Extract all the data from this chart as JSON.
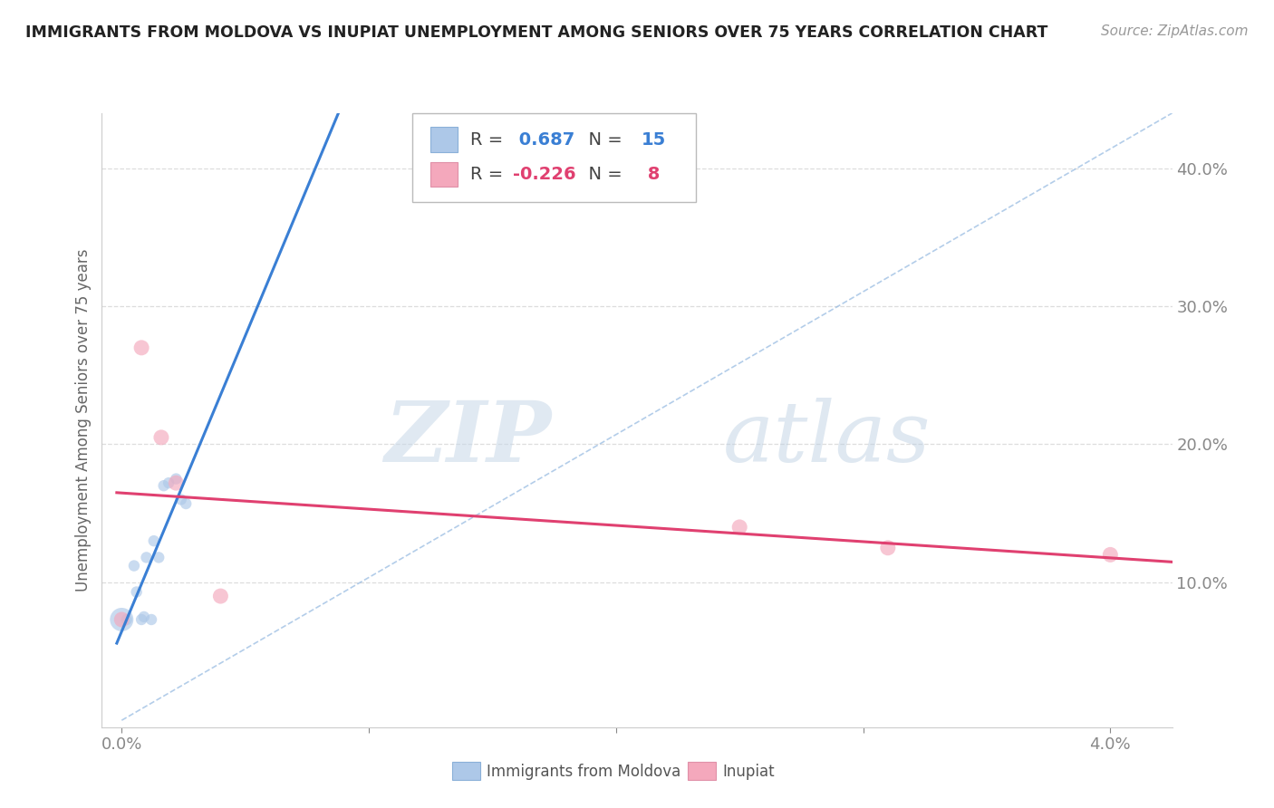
{
  "title": "IMMIGRANTS FROM MOLDOVA VS INUPIAT UNEMPLOYMENT AMONG SENIORS OVER 75 YEARS CORRELATION CHART",
  "source": "Source: ZipAtlas.com",
  "ylabel": "Unemployment Among Seniors over 75 years",
  "legend_bottom_labels": [
    "Immigrants from Moldova",
    "Inupiat"
  ],
  "R_blue": 0.687,
  "N_blue": 15,
  "R_pink": -0.226,
  "N_pink": 8,
  "blue_color": "#adc8e8",
  "pink_color": "#f4a8bc",
  "blue_line_color": "#3a7fd4",
  "pink_line_color": "#e04070",
  "ref_line_color": "#93b8e0",
  "scatter_blue": [
    [
      0.0,
      0.073
    ],
    [
      0.0002,
      0.073
    ],
    [
      0.0005,
      0.112
    ],
    [
      0.0006,
      0.093
    ],
    [
      0.0008,
      0.073
    ],
    [
      0.0009,
      0.075
    ],
    [
      0.001,
      0.118
    ],
    [
      0.0012,
      0.073
    ],
    [
      0.0013,
      0.13
    ],
    [
      0.0015,
      0.118
    ],
    [
      0.0017,
      0.17
    ],
    [
      0.0019,
      0.172
    ],
    [
      0.0022,
      0.175
    ],
    [
      0.0024,
      0.16
    ],
    [
      0.0026,
      0.157
    ]
  ],
  "scatter_pink": [
    [
      0.0,
      0.073
    ],
    [
      0.0008,
      0.27
    ],
    [
      0.0016,
      0.205
    ],
    [
      0.0022,
      0.172
    ],
    [
      0.004,
      0.09
    ],
    [
      0.025,
      0.14
    ],
    [
      0.031,
      0.125
    ],
    [
      0.04,
      0.12
    ]
  ],
  "blue_sizes": [
    120,
    80,
    80,
    80,
    80,
    80,
    80,
    80,
    80,
    80,
    80,
    80,
    80,
    80,
    80
  ],
  "blue_size_large": 350,
  "pink_sizes": [
    150,
    150,
    150,
    150,
    150,
    150,
    150,
    150
  ],
  "xlim": [
    -0.0008,
    0.0425
  ],
  "ylim": [
    -0.005,
    0.44
  ],
  "x_ticks": [
    0.0,
    0.01,
    0.02,
    0.03,
    0.04
  ],
  "y_ticks": [
    0.0,
    0.1,
    0.2,
    0.3,
    0.4
  ],
  "watermark_zip": "ZIP",
  "watermark_atlas": "atlas",
  "background_color": "#ffffff",
  "grid_color": "#dddddd",
  "tick_label_color": "#5090d0",
  "axis_label_color": "#666666"
}
